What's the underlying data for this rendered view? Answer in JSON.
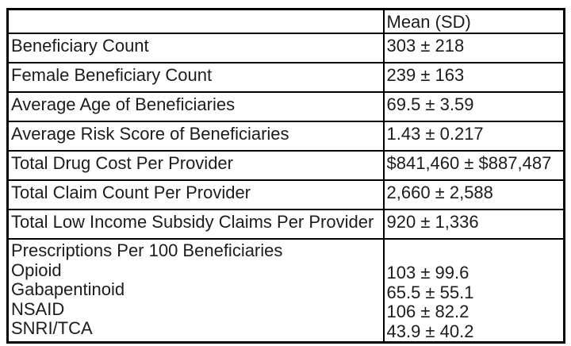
{
  "table": {
    "columns": [
      "",
      "Mean (SD)"
    ],
    "rows": [
      {
        "label": "Beneficiary Count",
        "value": "303 ± 218"
      },
      {
        "label": "Female Beneficiary Count",
        "value": "239 ± 163"
      },
      {
        "label": "Average Age of Beneficiaries",
        "value": "69.5 ± 3.59"
      },
      {
        "label": "Average Risk Score of Beneficiaries",
        "value": "1.43 ± 0.217"
      },
      {
        "label": "Total Drug Cost Per Provider",
        "value": "$841,460 ± $887,487"
      },
      {
        "label": "Total Claim Count Per Provider",
        "value": "2,660 ± 2,588"
      },
      {
        "label": "Total Low Income Subsidy Claims Per Provider",
        "value": "920 ± 1,336"
      }
    ],
    "group": {
      "title": "Prescriptions Per 100 Beneficiaries",
      "items": [
        {
          "label": "Opioid",
          "value": "103 ± 99.6"
        },
        {
          "label": "Gabapentinoid",
          "value": "65.5 ± 55.1"
        },
        {
          "label": "NSAID",
          "value": "106 ± 82.2"
        },
        {
          "label": "SNRI/TCA",
          "value": "43.9 ± 40.2"
        }
      ]
    },
    "colors": {
      "border": "#000000",
      "text": "#1c1c1c",
      "background": "#ffffff"
    }
  }
}
